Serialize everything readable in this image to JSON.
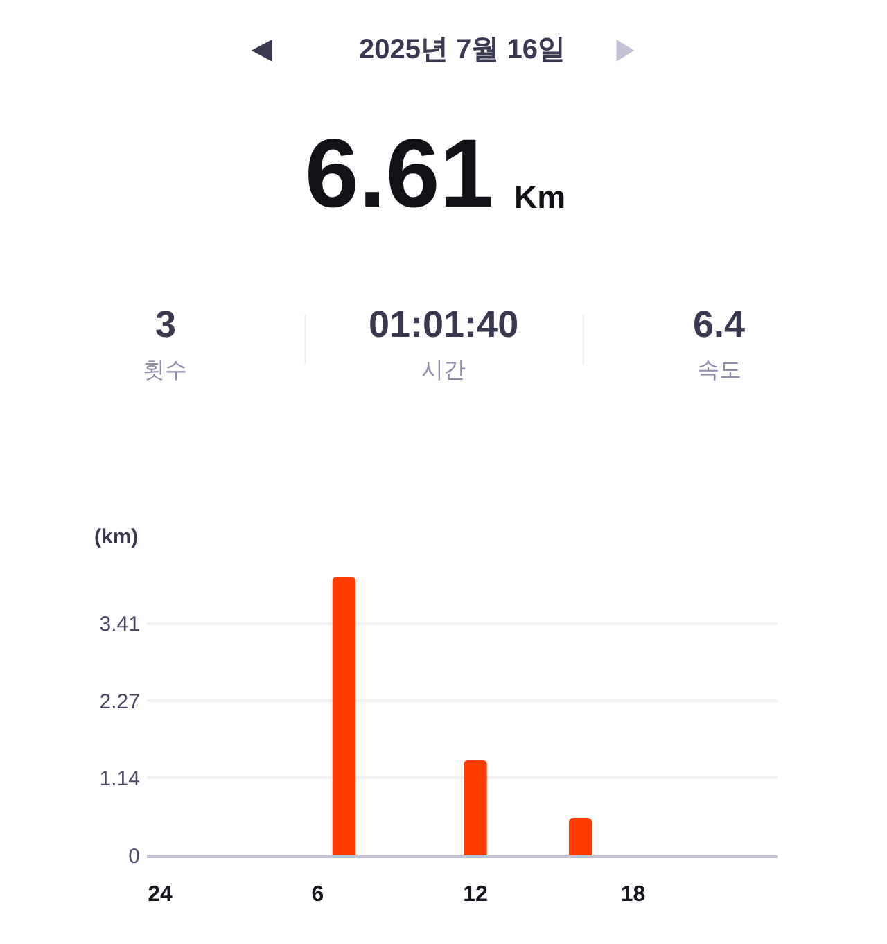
{
  "chart_data": {
    "type": "bar",
    "title": "2025년 7월 16일",
    "annotations": [
      "6.61",
      "Km",
      "3",
      "횟수",
      "01:01:40",
      "시간",
      "6.4",
      "속도"
    ],
    "ylabel": "(km)",
    "categories": [
      "24",
      null,
      null,
      null,
      null,
      null,
      "6",
      null,
      null,
      null,
      null,
      null,
      "12",
      null,
      null,
      null,
      null,
      null,
      "18",
      null,
      null,
      null,
      null,
      null
    ],
    "values": [
      null,
      null,
      null,
      null,
      null,
      null,
      null,
      4.1,
      null,
      null,
      null,
      null,
      1.4,
      null,
      null,
      null,
      0.55,
      null,
      null,
      null,
      null,
      null,
      null,
      null
    ],
    "color": "#ff3d00",
    "ylim": [
      0,
      4.1
    ],
    "yticks": [
      0,
      1.14,
      2.27,
      3.41
    ],
    "grid": "y"
  }
}
